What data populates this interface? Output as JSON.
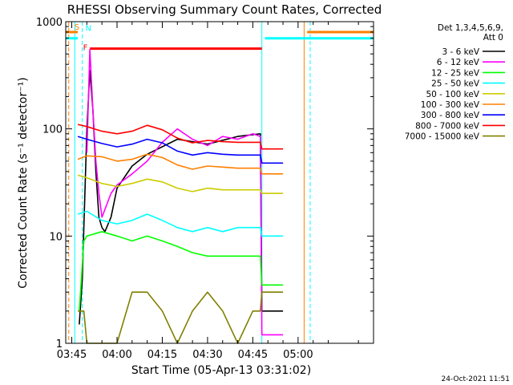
{
  "chart_data": {
    "type": "line",
    "title": "RHESSI Observing Summary Count Rates, Corrected",
    "xlabel": "Start Time (05-Apr-13 03:31:02)",
    "ylabel": "Corrected Count Rate (s⁻¹ detector⁻¹)",
    "yscale": "log",
    "ylim": [
      1,
      1000
    ],
    "xlim_minutes": [
      -17,
      85
    ],
    "x_ticks": [
      {
        "t": -15,
        "label": "03:45"
      },
      {
        "t": 0,
        "label": "04:00"
      },
      {
        "t": 15,
        "label": "04:15"
      },
      {
        "t": 30,
        "label": "04:30"
      },
      {
        "t": 45,
        "label": "04:45"
      },
      {
        "t": 60,
        "label": "05:00"
      }
    ],
    "y_ticks": [
      {
        "v": 1,
        "label": "1"
      },
      {
        "v": 10,
        "label": "10"
      },
      {
        "v": 100,
        "label": "100"
      },
      {
        "v": 1000,
        "label": "1000"
      }
    ],
    "legend": {
      "position": "top-right",
      "header": [
        "Det 1,3,4,5,6,9,",
        "Att 0"
      ]
    },
    "series": [
      {
        "name": "3 - 6 keV",
        "color": "#000000",
        "x": [
          -12.5,
          -11.5,
          -11,
          -10,
          -9,
          -8,
          -7,
          -6,
          -5,
          -4,
          -2,
          0,
          5,
          10,
          20,
          30,
          40,
          47.5,
          48,
          55
        ],
        "y": [
          1.5,
          4,
          12,
          100,
          350,
          150,
          40,
          15,
          12,
          11,
          15,
          28,
          45,
          58,
          80,
          72,
          85,
          90,
          2,
          2
        ]
      },
      {
        "name": "6 - 12 keV",
        "color": "#ff00ff",
        "x": [
          -10,
          -9,
          -8,
          -7,
          -6,
          -5,
          -2,
          0,
          5,
          10,
          15,
          20,
          25,
          30,
          35,
          40,
          45,
          47.5,
          48,
          55
        ],
        "y": [
          60,
          550,
          150,
          50,
          25,
          15,
          25,
          30,
          38,
          50,
          75,
          100,
          80,
          70,
          85,
          80,
          90,
          85,
          1.2,
          1.2
        ]
      },
      {
        "name": "12 - 25 keV",
        "color": "#00ff00",
        "x": [
          -12.5,
          -11,
          -10,
          -5,
          0,
          5,
          10,
          15,
          20,
          25,
          30,
          35,
          40,
          47.5,
          48,
          55
        ],
        "y": [
          2,
          9,
          10,
          11,
          10,
          9,
          10,
          9,
          8,
          7,
          6.5,
          6.5,
          6.5,
          6.5,
          3.5,
          3.5
        ]
      },
      {
        "name": "25 - 50 keV",
        "color": "#00ffff",
        "x": [
          -13,
          -10,
          -5,
          0,
          5,
          10,
          15,
          20,
          25,
          30,
          35,
          40,
          47.5,
          48,
          55
        ],
        "y": [
          16,
          17,
          14,
          13,
          14,
          16,
          14,
          12,
          11,
          12,
          11,
          12,
          12,
          10,
          10
        ]
      },
      {
        "name": "50 - 100 keV",
        "color": "#cccc00",
        "x": [
          -13,
          -10,
          -5,
          0,
          5,
          10,
          15,
          20,
          25,
          30,
          35,
          40,
          47.5,
          48,
          55
        ],
        "y": [
          37,
          35,
          31,
          29,
          31,
          34,
          32,
          28,
          26,
          28,
          27,
          27,
          27,
          25,
          25
        ]
      },
      {
        "name": "100 - 300 keV",
        "color": "#ff8000",
        "x": [
          -13,
          -10,
          -5,
          0,
          5,
          10,
          15,
          20,
          25,
          30,
          35,
          40,
          47.5,
          48,
          55
        ],
        "y": [
          52,
          56,
          55,
          50,
          52,
          58,
          54,
          46,
          42,
          45,
          44,
          43,
          43,
          38,
          38
        ]
      },
      {
        "name": "300 - 800 keV",
        "color": "#0000ff",
        "x": [
          -13,
          -10,
          -5,
          0,
          5,
          10,
          15,
          20,
          25,
          30,
          35,
          40,
          47.5,
          48,
          55
        ],
        "y": [
          85,
          80,
          73,
          68,
          72,
          80,
          74,
          62,
          57,
          60,
          58,
          57,
          57,
          48,
          48
        ]
      },
      {
        "name": "800 - 7000 keV",
        "color": "#ff0000",
        "x": [
          -13,
          -10,
          -5,
          0,
          5,
          10,
          15,
          20,
          25,
          30,
          35,
          40,
          47.5,
          48,
          55
        ],
        "y": [
          110,
          105,
          95,
          90,
          95,
          108,
          98,
          82,
          74,
          78,
          76,
          75,
          75,
          65,
          65
        ]
      },
      {
        "name": "7000 - 15000 keV",
        "color": "#808000",
        "x": [
          -13,
          -11,
          -10,
          -5,
          0,
          5,
          10,
          15,
          20,
          25,
          30,
          35,
          40,
          45,
          47.5,
          48,
          55
        ],
        "y": [
          2,
          2,
          1,
          1,
          1,
          3,
          3,
          2,
          1,
          2,
          3,
          2,
          1,
          2,
          2,
          3,
          3
        ]
      }
    ],
    "flag_bars": [
      {
        "label": "S",
        "color": "#ff8000",
        "segments": [
          [
            -17,
            -13
          ],
          [
            63,
            85
          ]
        ],
        "y": 800
      },
      {
        "label": "",
        "color": "#00ffff",
        "segments": [
          [
            -17,
            -13
          ],
          [
            49,
            85
          ]
        ],
        "y": 700
      },
      {
        "label": "F",
        "color": "#ff0000",
        "segments": [
          [
            -9,
            48
          ]
        ],
        "y": 560
      },
      {
        "label": "N",
        "color": "#00ffff",
        "segments": [],
        "y": 700
      }
    ],
    "vertical_lines": [
      {
        "t": -16,
        "color": "#ff8000",
        "style": "dashed"
      },
      {
        "t": -14,
        "color": "#00ffff",
        "style": "solid"
      },
      {
        "t": -11.5,
        "color": "#00ffff",
        "style": "dashed"
      },
      {
        "t": 48,
        "color": "#00ffff",
        "style": "solid"
      },
      {
        "t": 62,
        "color": "#ff8000",
        "style": "solid"
      },
      {
        "t": 64,
        "color": "#00ffff",
        "style": "dashed"
      }
    ]
  },
  "footer": {
    "timestamp": "24-Oct-2021 11:51"
  }
}
